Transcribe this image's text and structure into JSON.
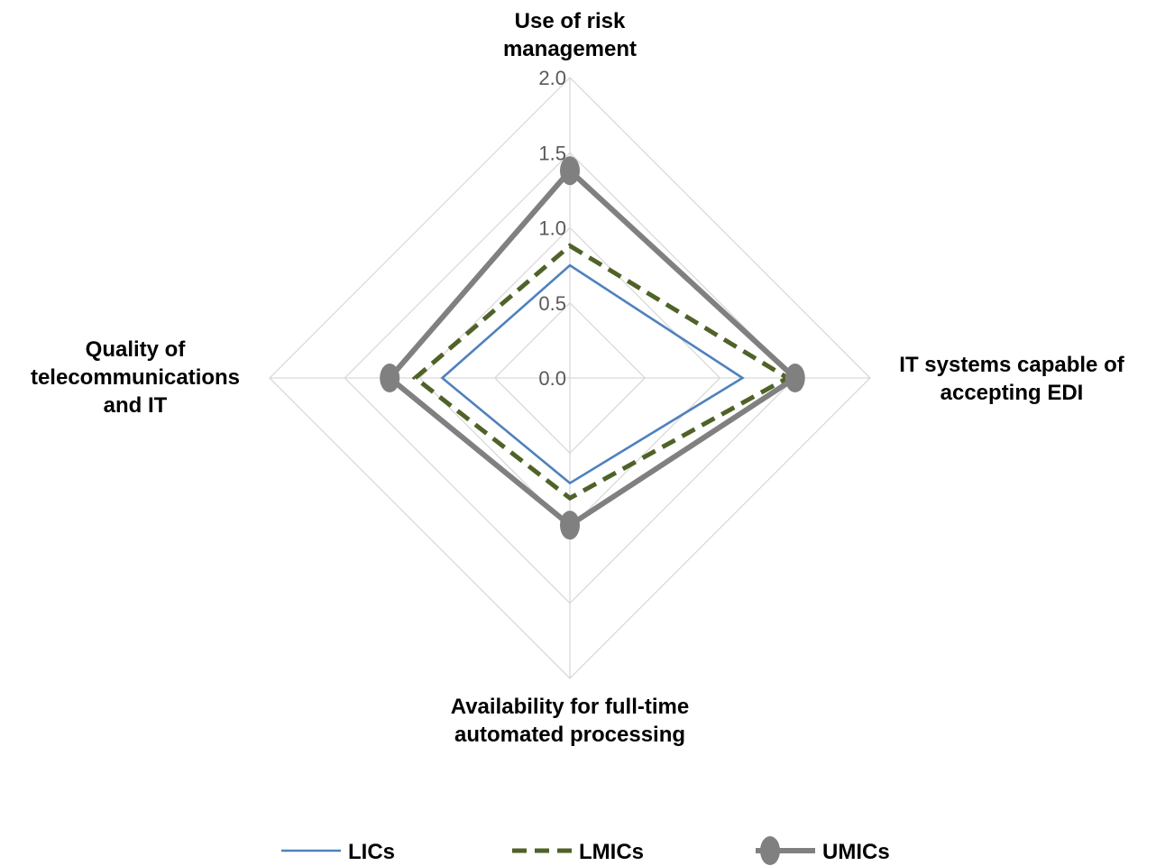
{
  "chart_data": {
    "type": "radar",
    "categories": [
      "Use of risk management",
      "IT systems capable of accepting EDI",
      "Availability for full-time automated processing",
      "Quality of telecommunications and IT"
    ],
    "category_lines": [
      [
        "Use of risk",
        "management"
      ],
      [
        "IT systems capable of",
        "accepting EDI"
      ],
      [
        "Availability for full-time",
        "automated processing"
      ],
      [
        "Quality of",
        "telecommunications",
        "and IT"
      ]
    ],
    "r_ticks": [
      "0.0",
      "0.5",
      "1.0",
      "1.5",
      "2.0"
    ],
    "rlim": [
      0,
      2.0
    ],
    "series": [
      {
        "name": "LICs",
        "values": [
          0.75,
          1.15,
          0.7,
          0.85
        ],
        "color": "#4f81bd",
        "style": "solid"
      },
      {
        "name": "LMICs",
        "values": [
          0.88,
          1.45,
          0.8,
          1.03
        ],
        "color": "#4f6228",
        "style": "dashed"
      },
      {
        "name": "UMICs",
        "values": [
          1.38,
          1.5,
          0.98,
          1.2
        ],
        "color": "#808080",
        "style": "solid-markers"
      }
    ],
    "legend_position": "bottom",
    "grid": true
  }
}
